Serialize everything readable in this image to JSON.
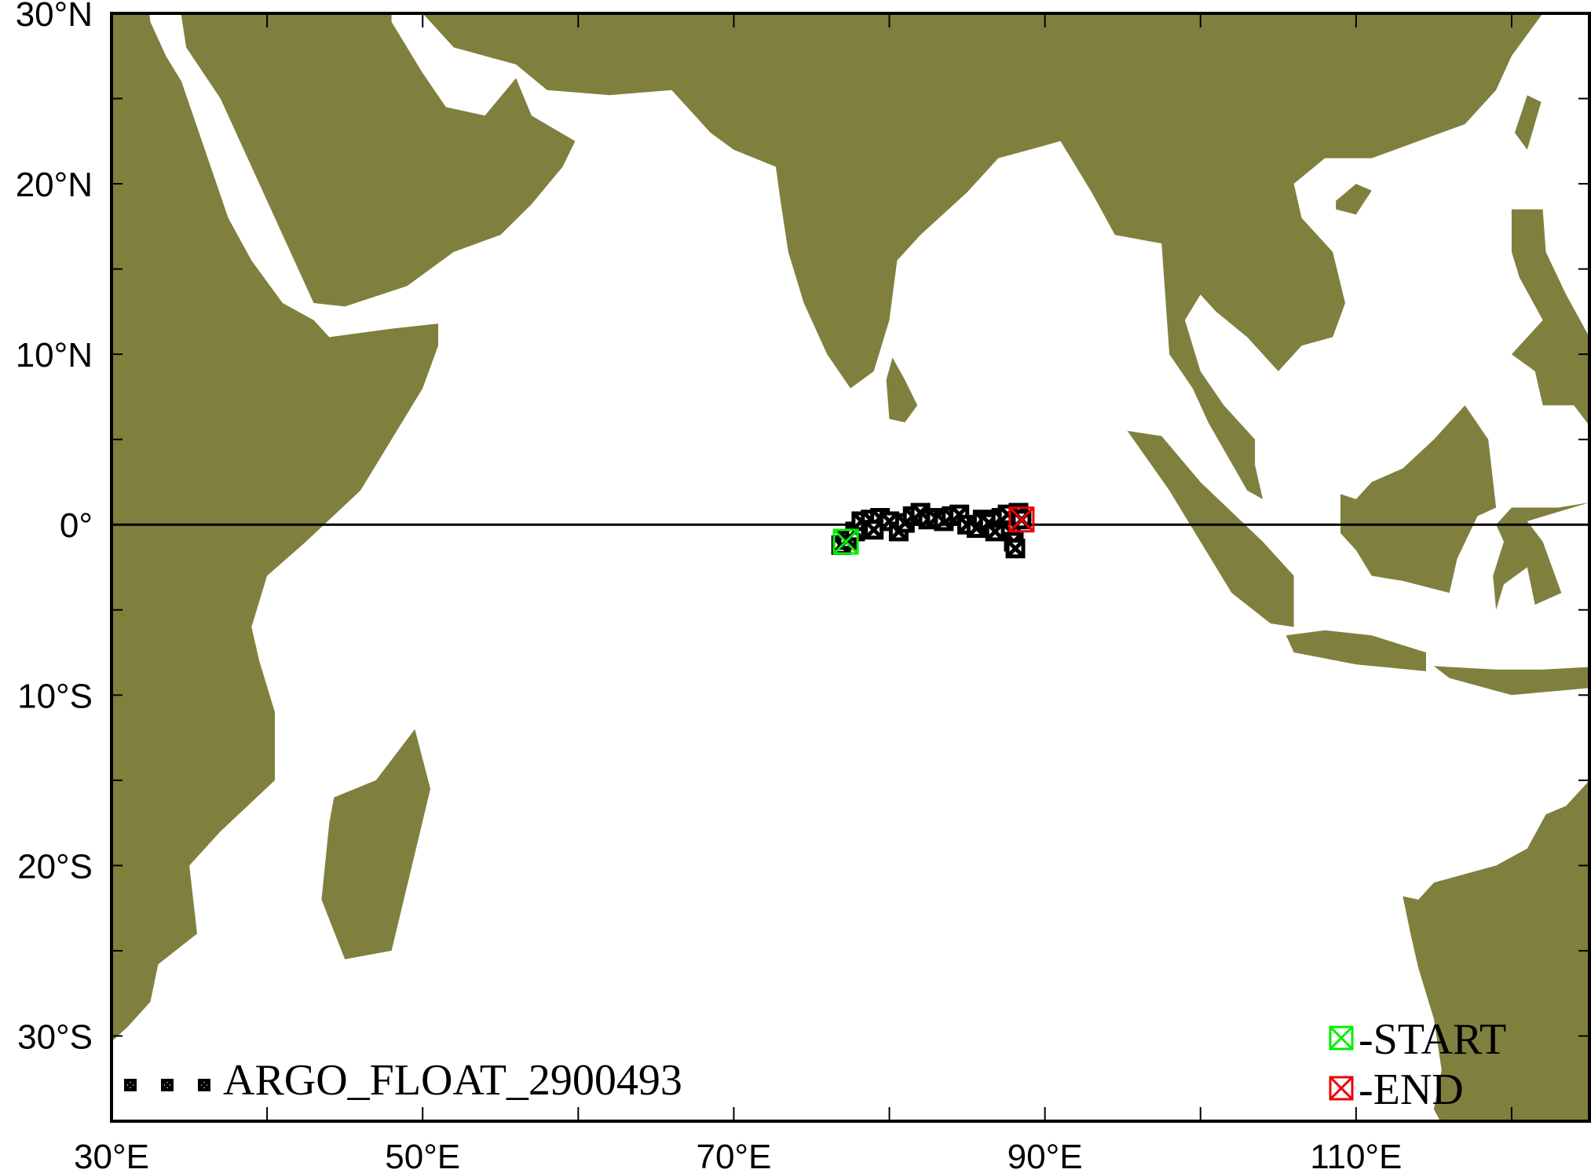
{
  "map": {
    "extent": {
      "lon": [
        30,
        125
      ],
      "lat": [
        -35,
        30
      ]
    },
    "land_color": "#80803e",
    "equator_shown": true,
    "x_tick_labels": [
      {
        "lon": 30,
        "label": "30°E"
      },
      {
        "lon": 50,
        "label": "50°E"
      },
      {
        "lon": 70,
        "label": "70°E"
      },
      {
        "lon": 90,
        "label": "90°E"
      },
      {
        "lon": 110,
        "label": "110°E"
      }
    ],
    "y_tick_labels": [
      {
        "lat": 30,
        "label": "30°N"
      },
      {
        "lat": 20,
        "label": "20°N"
      },
      {
        "lat": 10,
        "label": "10°N"
      },
      {
        "lat": 0,
        "label": "0°"
      },
      {
        "lat": -10,
        "label": "10°S"
      },
      {
        "lat": -20,
        "label": "20°S"
      },
      {
        "lat": -30,
        "label": "30°S"
      }
    ]
  },
  "track": {
    "name": "ARGO_FLOAT_2900493",
    "marker_color": "#000000",
    "start": {
      "lon": 77.2,
      "lat": -1.0,
      "label": "-START",
      "color": "#00ee00"
    },
    "end": {
      "lon": 88.5,
      "lat": 0.3,
      "label": "-END",
      "color": "#ee0000"
    },
    "points": [
      [
        76.9,
        -1.2
      ],
      [
        77.3,
        -0.9
      ],
      [
        77.8,
        -0.4
      ],
      [
        78.2,
        0.2
      ],
      [
        78.8,
        0.3
      ],
      [
        79.4,
        0.4
      ],
      [
        79.0,
        -0.3
      ],
      [
        80.0,
        0.2
      ],
      [
        80.6,
        -0.4
      ],
      [
        81.0,
        0.1
      ],
      [
        81.5,
        0.5
      ],
      [
        82.0,
        0.7
      ],
      [
        82.5,
        0.3
      ],
      [
        83.0,
        0.4
      ],
      [
        83.5,
        0.2
      ],
      [
        84.0,
        0.5
      ],
      [
        84.5,
        0.6
      ],
      [
        85.0,
        0.0
      ],
      [
        85.6,
        -0.2
      ],
      [
        86.0,
        0.3
      ],
      [
        86.4,
        0.1
      ],
      [
        86.8,
        -0.4
      ],
      [
        87.2,
        0.4
      ],
      [
        87.6,
        0.6
      ],
      [
        87.8,
        -0.4
      ],
      [
        88.0,
        -1.0
      ],
      [
        88.1,
        -1.4
      ],
      [
        88.3,
        0.7
      ],
      [
        88.5,
        0.3
      ]
    ]
  },
  "legend": {
    "series_label": "ARGO_FLOAT_2900493",
    "start_label": "-START",
    "end_label": "-END"
  }
}
